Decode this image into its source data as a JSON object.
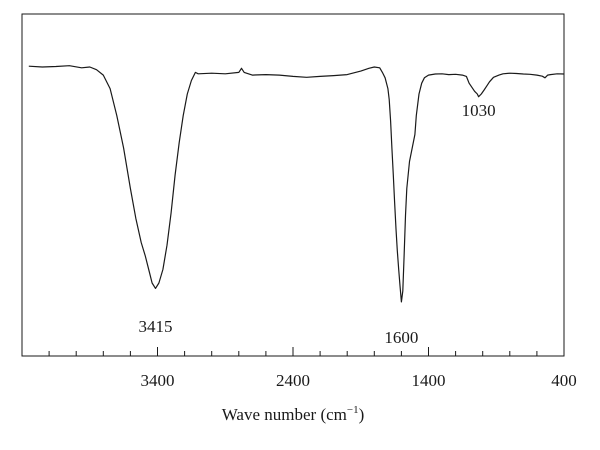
{
  "chart_data": {
    "type": "line",
    "title": "",
    "xlabel": "Wave number (cm",
    "xlabel_sup": "−1",
    "xlabel_suffix": ")",
    "ylabel": "",
    "x_reversed": true,
    "xlim": [
      4400,
      400
    ],
    "ylim": [
      0,
      1.0
    ],
    "xticks": [
      3400,
      2400,
      1400,
      400
    ],
    "xtick_labels": [
      "3400",
      "2400",
      "1400",
      "400"
    ],
    "minor_tick_step": 200,
    "series": [
      {
        "x": [
          4350,
          4250,
          4150,
          4050,
          3960,
          3900,
          3850,
          3800,
          3750,
          3700,
          3650,
          3600,
          3560,
          3520,
          3490,
          3460,
          3440,
          3415,
          3390,
          3360,
          3330,
          3300,
          3270,
          3240,
          3210,
          3180,
          3150,
          3120,
          3100,
          3000,
          2900,
          2800,
          2780,
          2760,
          2700,
          2600,
          2500,
          2400,
          2300,
          2200,
          2100,
          2000,
          1900,
          1840,
          1800,
          1760,
          1740,
          1720,
          1700,
          1690,
          1680,
          1670,
          1660,
          1650,
          1640,
          1630,
          1620,
          1610,
          1600,
          1590,
          1580,
          1570,
          1560,
          1540,
          1520,
          1500,
          1490,
          1470,
          1450,
          1430,
          1400,
          1350,
          1300,
          1250,
          1200,
          1150,
          1120,
          1100,
          1080,
          1060,
          1040,
          1030,
          1010,
          990,
          970,
          950,
          920,
          880,
          850,
          800,
          750,
          700,
          650,
          600,
          560,
          540,
          520,
          500,
          450,
          400
        ],
        "y": [
          0.903,
          0.9,
          0.902,
          0.905,
          0.897,
          0.9,
          0.89,
          0.87,
          0.82,
          0.72,
          0.6,
          0.45,
          0.34,
          0.25,
          0.2,
          0.14,
          0.1,
          0.08,
          0.1,
          0.15,
          0.24,
          0.36,
          0.5,
          0.62,
          0.72,
          0.8,
          0.85,
          0.88,
          0.875,
          0.877,
          0.875,
          0.88,
          0.895,
          0.88,
          0.87,
          0.872,
          0.87,
          0.865,
          0.862,
          0.865,
          0.868,
          0.872,
          0.885,
          0.895,
          0.9,
          0.897,
          0.88,
          0.86,
          0.82,
          0.78,
          0.7,
          0.6,
          0.5,
          0.4,
          0.3,
          0.22,
          0.15,
          0.09,
          0.03,
          0.07,
          0.2,
          0.35,
          0.45,
          0.55,
          0.6,
          0.65,
          0.72,
          0.8,
          0.84,
          0.86,
          0.87,
          0.874,
          0.875,
          0.872,
          0.873,
          0.87,
          0.865,
          0.84,
          0.825,
          0.81,
          0.8,
          0.79,
          0.8,
          0.815,
          0.83,
          0.845,
          0.862,
          0.87,
          0.875,
          0.877,
          0.876,
          0.874,
          0.873,
          0.87,
          0.866,
          0.86,
          0.87,
          0.872,
          0.875,
          0.874
        ]
      }
    ],
    "annotations": [
      {
        "text": "3415",
        "x": 3415,
        "y": -0.06
      },
      {
        "text": "1600",
        "x": 1600,
        "y": -0.1
      },
      {
        "text": "1030",
        "x": 1030,
        "y": 0.74
      }
    ],
    "grid": false,
    "colors": {
      "line": "#1a1a1a",
      "axis": "#1a1a1a"
    }
  }
}
